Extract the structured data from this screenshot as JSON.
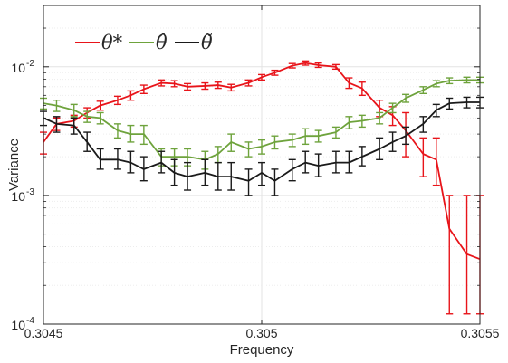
{
  "chart_data": {
    "type": "line",
    "xlabel": "Frequency",
    "ylabel": "Variance",
    "x_axis": {
      "range": [
        0.3045,
        0.3055
      ],
      "ticks": [
        0.3045,
        0.305,
        0.3055
      ],
      "tick_labels": [
        "0.3045",
        "0.305",
        "0.3055"
      ]
    },
    "y_axis": {
      "scale": "log",
      "range": [
        0.0001,
        0.03
      ],
      "ticks": [
        0.0001,
        0.001,
        0.01
      ],
      "tick_labels": [
        {
          "base": "10",
          "exp": "-4"
        },
        {
          "base": "10",
          "exp": "-3"
        },
        {
          "base": "10",
          "exp": "-2"
        }
      ]
    },
    "grid": true,
    "legend_placement": "top-left",
    "x": [
      0.3045,
      0.30453,
      0.30457,
      0.3046,
      0.30463,
      0.30467,
      0.3047,
      0.30473,
      0.30477,
      0.3048,
      0.30483,
      0.30487,
      0.3049,
      0.30493,
      0.30497,
      0.305,
      0.30503,
      0.30507,
      0.3051,
      0.30513,
      0.30517,
      0.3052,
      0.30523,
      0.30527,
      0.3053,
      0.30533,
      0.30537,
      0.3054,
      0.30543,
      0.30547,
      0.3055
    ],
    "series": [
      {
        "name": "θ*",
        "color": "#e8141a",
        "values": [
          0.0026,
          0.0036,
          0.0038,
          0.0044,
          0.005,
          0.0055,
          0.006,
          0.0067,
          0.0075,
          0.0074,
          0.007,
          0.0071,
          0.0072,
          0.0069,
          0.0075,
          0.0083,
          0.009,
          0.0102,
          0.0107,
          0.0103,
          0.01,
          0.0075,
          0.0068,
          0.0048,
          0.0042,
          0.0032,
          0.0021,
          0.0019,
          0.00055,
          0.00035,
          0.00032
        ],
        "err_low": [
          0.0021,
          0.0032,
          0.0034,
          0.004,
          0.0046,
          0.0051,
          0.0055,
          0.0062,
          0.0071,
          0.007,
          0.0066,
          0.0067,
          0.0068,
          0.0065,
          0.0071,
          0.0079,
          0.0086,
          0.0098,
          0.0103,
          0.0099,
          0.0096,
          0.0068,
          0.006,
          0.0041,
          0.0035,
          0.002,
          0.0014,
          0.0012,
          0.00012,
          0.00012,
          0.00012
        ],
        "err_high": [
          0.0031,
          0.004,
          0.0042,
          0.0048,
          0.0054,
          0.0059,
          0.0065,
          0.0072,
          0.0079,
          0.0078,
          0.0074,
          0.0075,
          0.0076,
          0.0073,
          0.0079,
          0.0087,
          0.0094,
          0.0106,
          0.0111,
          0.0107,
          0.0104,
          0.0082,
          0.0076,
          0.0055,
          0.0049,
          0.0044,
          0.0028,
          0.0028,
          0.001,
          0.001,
          0.001
        ]
      },
      {
        "name": "θ̂",
        "color": "#6ea33c",
        "values": [
          0.0052,
          0.005,
          0.0046,
          0.0041,
          0.004,
          0.0032,
          0.003,
          0.003,
          0.002,
          0.002,
          0.002,
          0.0019,
          0.0021,
          0.0026,
          0.0023,
          0.0024,
          0.0026,
          0.0027,
          0.0029,
          0.0029,
          0.0031,
          0.0037,
          0.0038,
          0.004,
          0.0048,
          0.0057,
          0.0066,
          0.0074,
          0.0078,
          0.0079,
          0.0079
        ],
        "err_low": [
          0.0047,
          0.0045,
          0.0041,
          0.0037,
          0.0036,
          0.0028,
          0.0026,
          0.0025,
          0.0017,
          0.0017,
          0.0017,
          0.0016,
          0.0018,
          0.0022,
          0.002,
          0.0021,
          0.0023,
          0.0024,
          0.0025,
          0.0026,
          0.0028,
          0.0033,
          0.0034,
          0.0036,
          0.0044,
          0.0053,
          0.0062,
          0.007,
          0.0074,
          0.0075,
          0.0075
        ],
        "err_high": [
          0.0057,
          0.0055,
          0.0051,
          0.0045,
          0.0044,
          0.0036,
          0.0035,
          0.0035,
          0.0023,
          0.0023,
          0.0023,
          0.0022,
          0.0024,
          0.003,
          0.0026,
          0.0027,
          0.0029,
          0.003,
          0.0033,
          0.0032,
          0.0034,
          0.0041,
          0.0042,
          0.0044,
          0.0052,
          0.0061,
          0.007,
          0.0078,
          0.0082,
          0.0083,
          0.0083
        ]
      },
      {
        "name": "θ̃",
        "color": "#1a1a1a",
        "values": [
          0.004,
          0.0036,
          0.0035,
          0.0026,
          0.0019,
          0.0019,
          0.0018,
          0.0016,
          0.0018,
          0.0015,
          0.0014,
          0.0015,
          0.0014,
          0.0014,
          0.0013,
          0.0015,
          0.0013,
          0.0016,
          0.0018,
          0.0017,
          0.0018,
          0.0018,
          0.002,
          0.0023,
          0.0026,
          0.0029,
          0.0036,
          0.0046,
          0.0052,
          0.0053,
          0.0053
        ],
        "err_low": [
          0.0035,
          0.0031,
          0.003,
          0.0022,
          0.0016,
          0.0016,
          0.0015,
          0.0013,
          0.0015,
          0.0012,
          0.0011,
          0.0012,
          0.0011,
          0.0011,
          0.001,
          0.0012,
          0.001,
          0.0013,
          0.0015,
          0.0014,
          0.0015,
          0.0015,
          0.0017,
          0.0019,
          0.0022,
          0.0025,
          0.0031,
          0.0041,
          0.0047,
          0.0048,
          0.0048
        ],
        "err_high": [
          0.0045,
          0.0041,
          0.004,
          0.0031,
          0.0023,
          0.0023,
          0.0022,
          0.002,
          0.0022,
          0.0019,
          0.0018,
          0.0019,
          0.0018,
          0.0018,
          0.0016,
          0.0018,
          0.0016,
          0.0019,
          0.0022,
          0.0021,
          0.0022,
          0.0022,
          0.0024,
          0.0028,
          0.0031,
          0.0034,
          0.0041,
          0.0051,
          0.0057,
          0.0058,
          0.0058
        ]
      }
    ]
  }
}
